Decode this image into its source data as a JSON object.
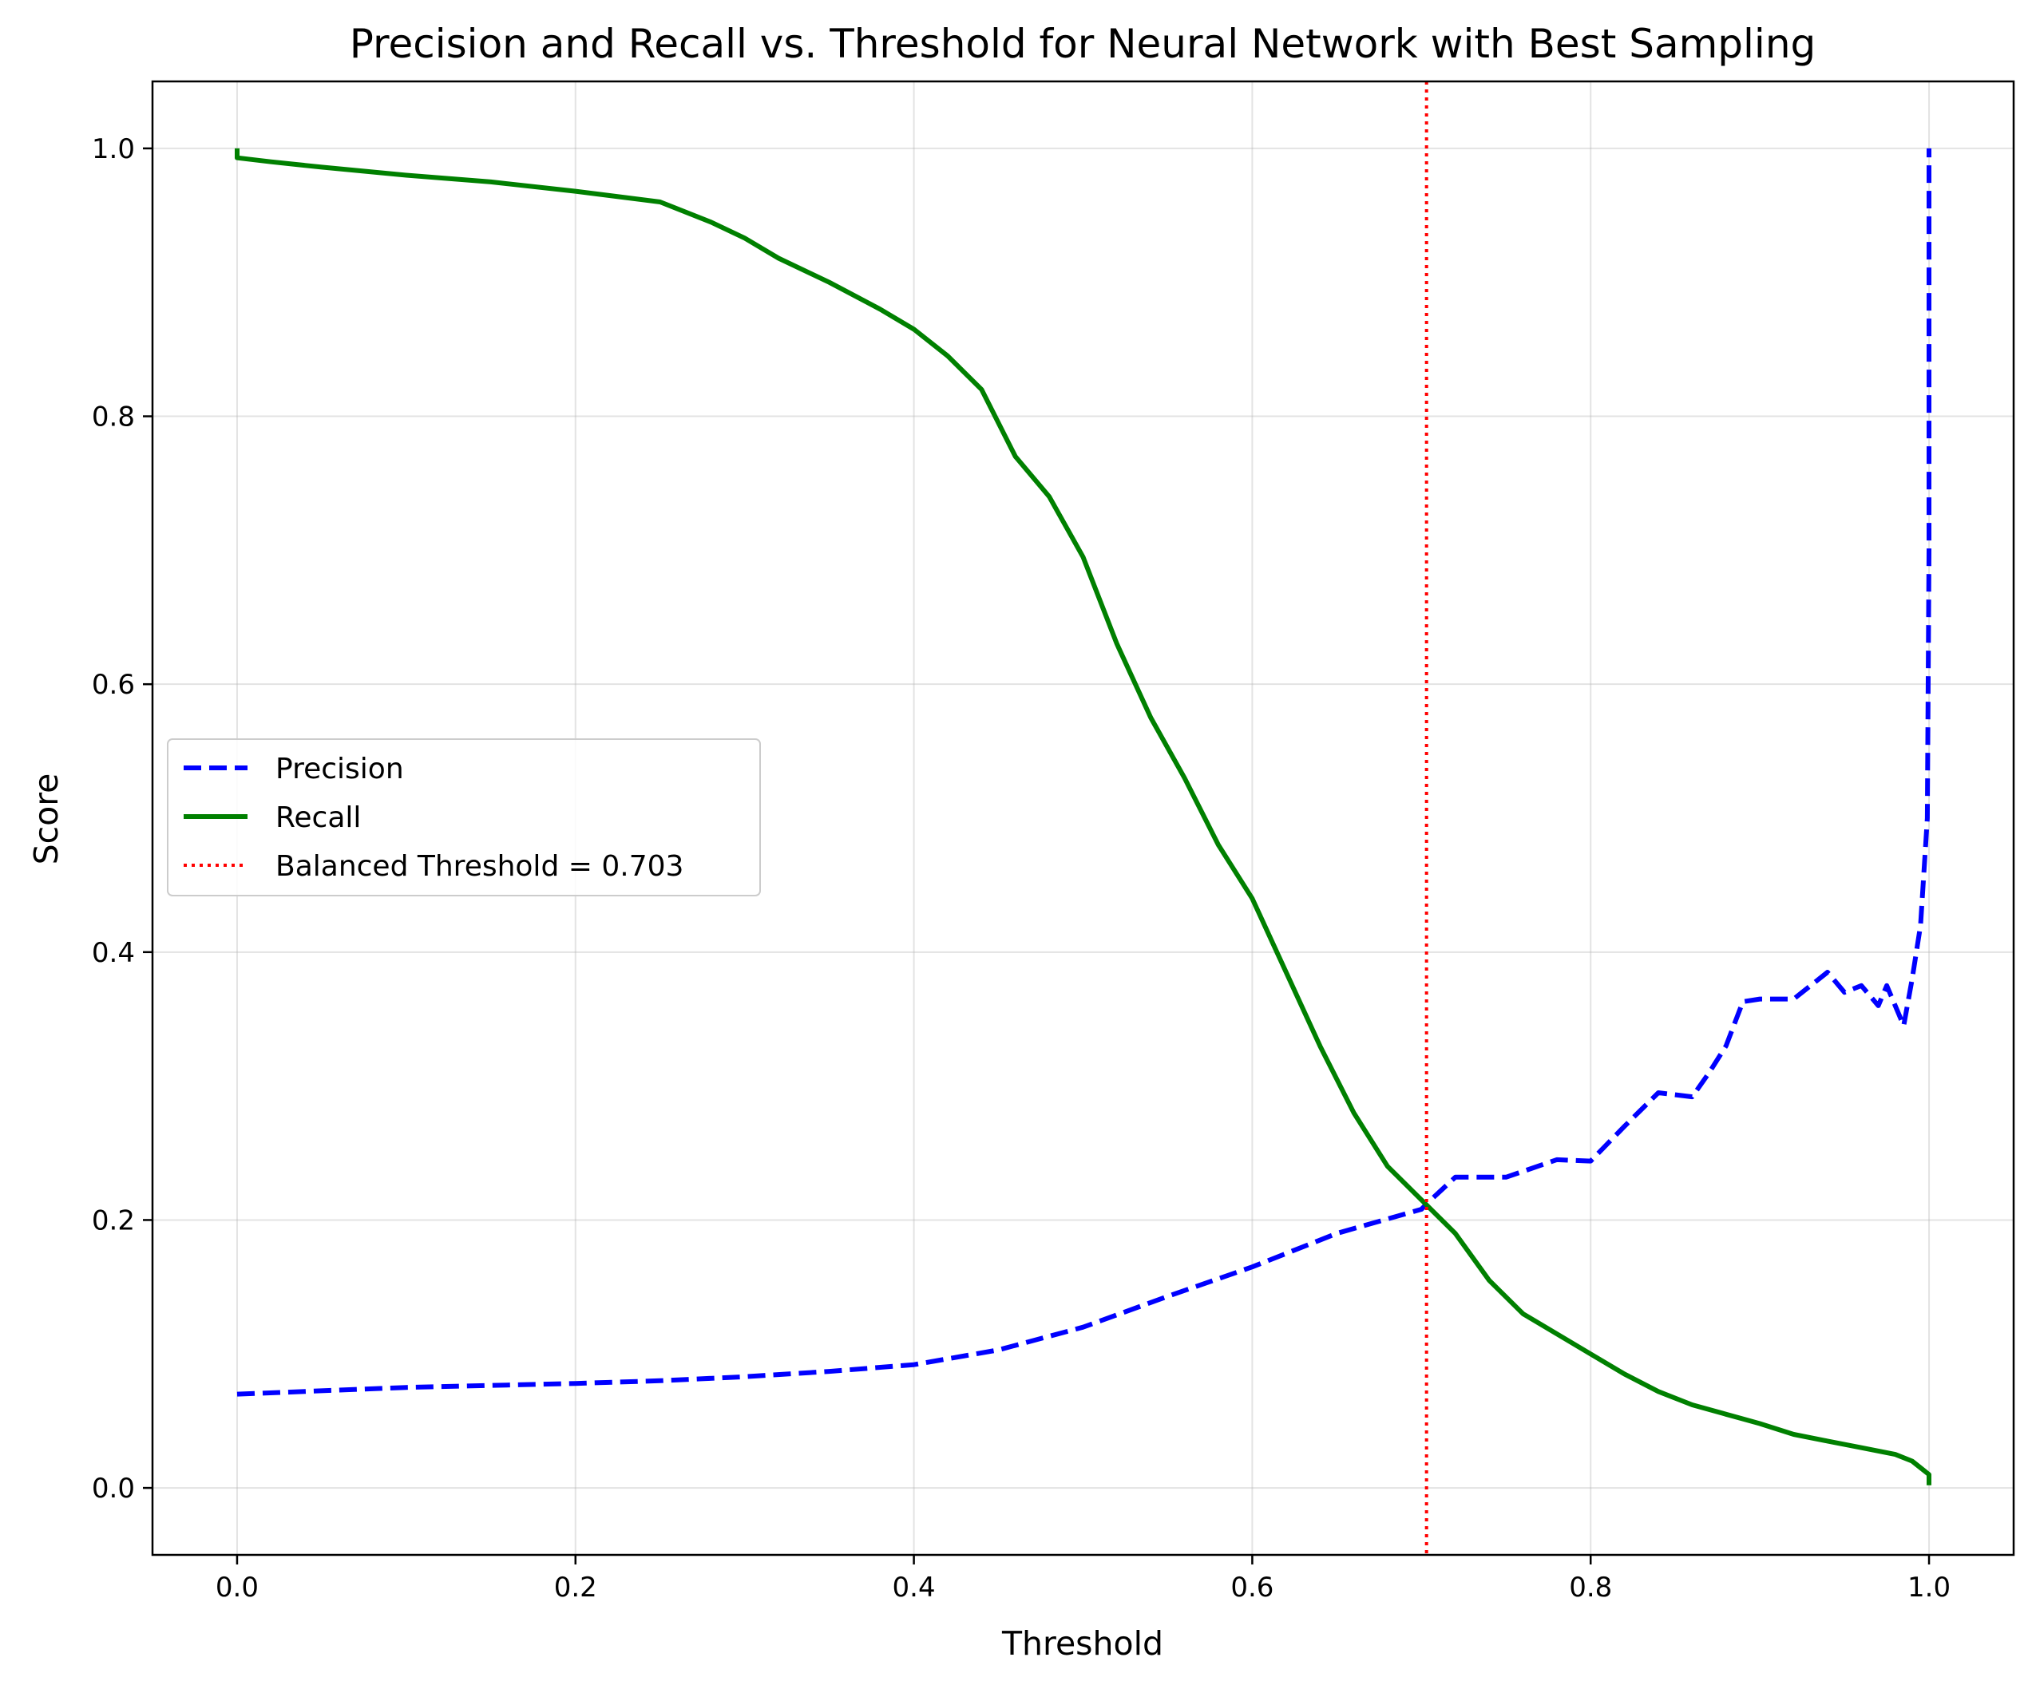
{
  "chart_data": {
    "type": "line",
    "title": "Precision and Recall vs. Threshold for Neural Network with Best Sampling",
    "xlabel": "Threshold",
    "ylabel": "Score",
    "xlim": [
      -0.05,
      1.05
    ],
    "ylim": [
      -0.05,
      1.05
    ],
    "xticks": [
      0.0,
      0.2,
      0.4,
      0.6,
      0.8,
      1.0
    ],
    "xtick_labels": [
      "0.0",
      "0.2",
      "0.4",
      "0.6",
      "0.8",
      "1.0"
    ],
    "yticks": [
      0.0,
      0.2,
      0.4,
      0.6,
      0.8,
      1.0
    ],
    "ytick_labels": [
      "0.0",
      "0.2",
      "0.4",
      "0.6",
      "0.8",
      "1.0"
    ],
    "grid": true,
    "legend_position": "center-left",
    "series": [
      {
        "name": "Precision",
        "color": "#0000ff",
        "style": "dashed",
        "x": [
          0.0,
          0.1,
          0.2,
          0.25,
          0.3,
          0.35,
          0.4,
          0.45,
          0.5,
          0.55,
          0.6,
          0.65,
          0.7,
          0.703,
          0.72,
          0.75,
          0.78,
          0.8,
          0.82,
          0.84,
          0.86,
          0.87,
          0.88,
          0.89,
          0.9,
          0.92,
          0.93,
          0.94,
          0.95,
          0.96,
          0.97,
          0.975,
          0.98,
          0.985,
          0.99,
          0.995,
          0.998,
          0.999,
          1.0,
          1.0
        ],
        "y": [
          0.07,
          0.075,
          0.078,
          0.08,
          0.083,
          0.087,
          0.092,
          0.103,
          0.12,
          0.143,
          0.165,
          0.19,
          0.208,
          0.212,
          0.232,
          0.232,
          0.245,
          0.244,
          0.27,
          0.295,
          0.292,
          0.31,
          0.33,
          0.363,
          0.365,
          0.365,
          0.375,
          0.385,
          0.37,
          0.375,
          0.36,
          0.375,
          0.36,
          0.345,
          0.38,
          0.42,
          0.48,
          0.5,
          0.7,
          1.0
        ]
      },
      {
        "name": "Recall",
        "color": "#008000",
        "style": "solid",
        "x": [
          0.0,
          0.0,
          0.02,
          0.05,
          0.1,
          0.15,
          0.2,
          0.25,
          0.28,
          0.3,
          0.32,
          0.35,
          0.38,
          0.4,
          0.42,
          0.44,
          0.46,
          0.48,
          0.5,
          0.52,
          0.54,
          0.56,
          0.58,
          0.6,
          0.62,
          0.64,
          0.66,
          0.68,
          0.7,
          0.72,
          0.74,
          0.76,
          0.78,
          0.8,
          0.82,
          0.84,
          0.86,
          0.88,
          0.9,
          0.92,
          0.94,
          0.96,
          0.98,
          0.99,
          0.995,
          1.0,
          1.0
        ],
        "y": [
          1.0,
          0.993,
          0.99,
          0.986,
          0.98,
          0.975,
          0.968,
          0.96,
          0.945,
          0.933,
          0.918,
          0.9,
          0.88,
          0.865,
          0.845,
          0.82,
          0.77,
          0.74,
          0.695,
          0.63,
          0.575,
          0.53,
          0.48,
          0.44,
          0.385,
          0.33,
          0.28,
          0.24,
          0.215,
          0.19,
          0.155,
          0.13,
          0.115,
          0.1,
          0.085,
          0.072,
          0.062,
          0.055,
          0.048,
          0.04,
          0.035,
          0.03,
          0.025,
          0.02,
          0.015,
          0.01,
          0.002
        ]
      }
    ],
    "threshold_line": {
      "name": "Balanced Threshold = 0.703",
      "x": 0.703,
      "color": "#ff0000",
      "style": "dotted"
    }
  }
}
